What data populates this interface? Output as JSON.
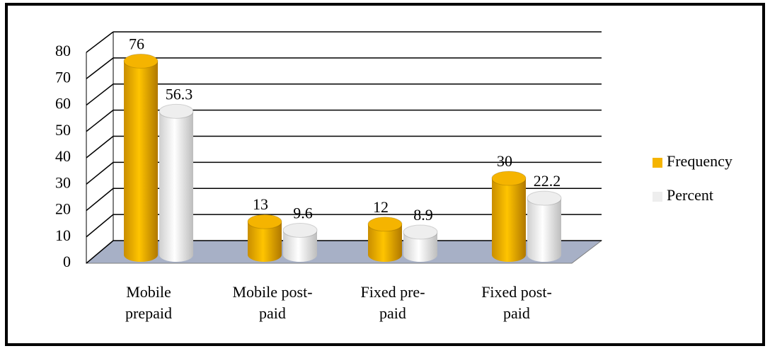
{
  "chart_data": {
    "type": "bar3d",
    "categories": [
      "Mobile prepaid",
      "Mobile post-paid",
      "Fixed pre-paid",
      "Fixed post-paid"
    ],
    "series": [
      {
        "name": "Frequency",
        "color": "#f5b400",
        "values": [
          76,
          13,
          12,
          30
        ]
      },
      {
        "name": "Percent",
        "color": "#eeeeee",
        "values": [
          56.3,
          9.6,
          8.9,
          22.2
        ]
      }
    ],
    "ylim": [
      0,
      80
    ],
    "yticks": [
      0,
      10,
      20,
      30,
      40,
      50,
      60,
      70,
      80
    ],
    "grid": true,
    "legend": "right"
  }
}
